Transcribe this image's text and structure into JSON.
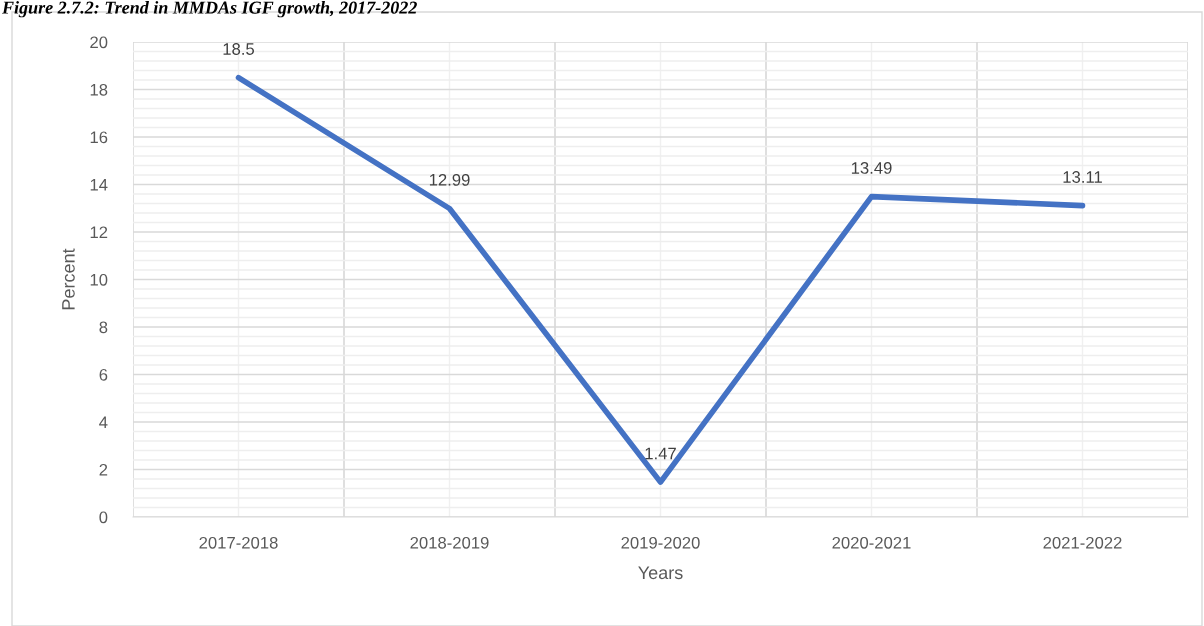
{
  "chart_data": {
    "type": "line",
    "title": "Figure 2.7.2: Trend in MMDAs IGF growth, 2017-2022",
    "xlabel": "Years",
    "ylabel": "Percent",
    "categories": [
      "2017-2018",
      "2018-2019",
      "2019-2020",
      "2020-2021",
      "2021-2022"
    ],
    "series": [
      {
        "color": "#4472c4",
        "values": [
          18.5,
          12.99,
          1.47,
          13.49,
          13.11
        ]
      }
    ],
    "ylim": [
      0,
      20
    ],
    "yticks": [
      0,
      2,
      4,
      6,
      8,
      10,
      12,
      14,
      16,
      18,
      20
    ],
    "grid": true,
    "data_labels": true,
    "marker": "none",
    "line_style": "solid",
    "legend": false
  }
}
